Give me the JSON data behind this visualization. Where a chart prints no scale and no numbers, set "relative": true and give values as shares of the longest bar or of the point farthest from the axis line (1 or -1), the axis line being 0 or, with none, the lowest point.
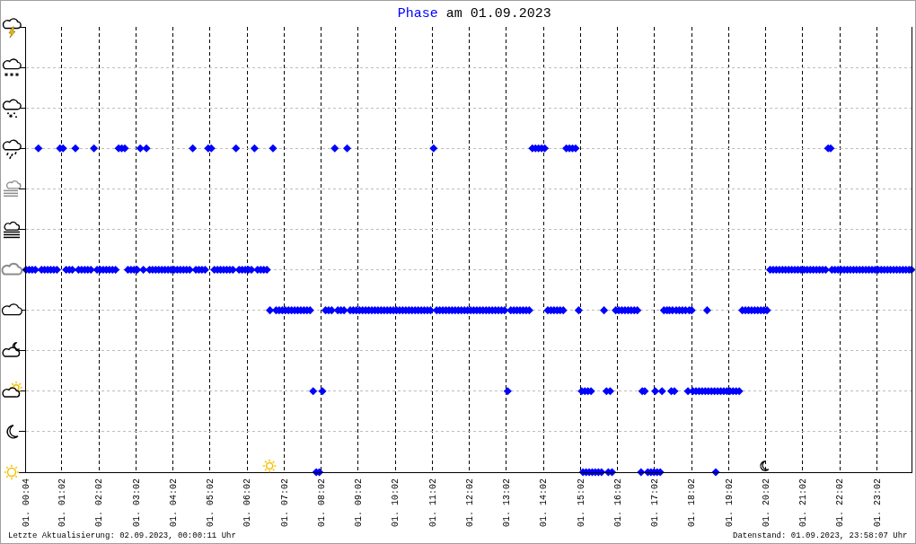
{
  "chart_data": {
    "type": "scatter",
    "title": "Phase am 01.09.2023",
    "annotations": [
      "Letzte Aktualisierung: 02.09.2023, 00:00:11 Uhr",
      "Datenstand: 01.09.2023, 23:58:07 Uhr"
    ],
    "x": [
      "2023-09-01T00:04",
      "2023-09-01T00:09",
      "2023-09-01T00:14",
      "2023-09-01T00:19",
      "2023-09-01T00:24",
      "2023-09-01T00:29",
      "2023-09-01T00:34",
      "2023-09-01T00:39",
      "2023-09-01T00:44",
      "2023-09-01T00:49",
      "2023-09-01T00:54",
      "2023-09-01T00:59",
      "2023-09-01T01:04",
      "2023-09-01T01:09",
      "2023-09-01T01:14",
      "2023-09-01T01:19",
      "2023-09-01T01:24",
      "2023-09-01T01:29",
      "2023-09-01T01:34",
      "2023-09-01T01:39",
      "2023-09-01T01:44",
      "2023-09-01T01:49",
      "2023-09-01T01:54",
      "2023-09-01T01:59",
      "2023-09-01T02:04",
      "2023-09-01T02:09",
      "2023-09-01T02:14",
      "2023-09-01T02:19",
      "2023-09-01T02:24",
      "2023-09-01T02:29",
      "2023-09-01T02:34",
      "2023-09-01T02:39",
      "2023-09-01T02:44",
      "2023-09-01T02:49",
      "2023-09-01T02:54",
      "2023-09-01T02:59",
      "2023-09-01T03:04",
      "2023-09-01T03:09",
      "2023-09-01T03:14",
      "2023-09-01T03:19",
      "2023-09-01T03:24",
      "2023-09-01T03:29",
      "2023-09-01T03:34",
      "2023-09-01T03:39",
      "2023-09-01T03:44",
      "2023-09-01T03:49",
      "2023-09-01T03:54",
      "2023-09-01T03:59",
      "2023-09-01T04:04",
      "2023-09-01T04:09",
      "2023-09-01T04:14",
      "2023-09-01T04:19",
      "2023-09-01T04:24",
      "2023-09-01T04:29",
      "2023-09-01T04:34",
      "2023-09-01T04:39",
      "2023-09-01T04:44",
      "2023-09-01T04:49",
      "2023-09-01T04:54",
      "2023-09-01T04:59",
      "2023-09-01T05:04",
      "2023-09-01T05:09",
      "2023-09-01T05:14",
      "2023-09-01T05:19",
      "2023-09-01T05:24",
      "2023-09-01T05:29",
      "2023-09-01T05:34",
      "2023-09-01T05:39",
      "2023-09-01T05:44",
      "2023-09-01T05:49",
      "2023-09-01T05:54",
      "2023-09-01T05:59",
      "2023-09-01T06:04",
      "2023-09-01T06:09",
      "2023-09-01T06:14",
      "2023-09-01T06:19",
      "2023-09-01T06:24",
      "2023-09-01T06:29",
      "2023-09-01T06:34",
      "2023-09-01T06:39",
      "2023-09-01T06:44",
      "2023-09-01T06:49",
      "2023-09-01T06:54",
      "2023-09-01T06:59",
      "2023-09-01T07:04",
      "2023-09-01T07:09",
      "2023-09-01T07:14",
      "2023-09-01T07:19",
      "2023-09-01T07:24",
      "2023-09-01T07:29",
      "2023-09-01T07:34",
      "2023-09-01T07:39",
      "2023-09-01T07:44",
      "2023-09-01T07:49",
      "2023-09-01T07:54",
      "2023-09-01T07:59",
      "2023-09-01T08:04",
      "2023-09-01T08:09",
      "2023-09-01T08:14",
      "2023-09-01T08:19",
      "2023-09-01T08:24",
      "2023-09-01T08:29",
      "2023-09-01T08:34",
      "2023-09-01T08:39",
      "2023-09-01T08:44",
      "2023-09-01T08:49",
      "2023-09-01T08:54",
      "2023-09-01T08:59",
      "2023-09-01T09:04",
      "2023-09-01T09:09",
      "2023-09-01T09:14",
      "2023-09-01T09:19",
      "2023-09-01T09:24",
      "2023-09-01T09:29",
      "2023-09-01T09:34",
      "2023-09-01T09:39",
      "2023-09-01T09:44",
      "2023-09-01T09:49",
      "2023-09-01T09:54",
      "2023-09-01T09:59",
      "2023-09-01T10:04",
      "2023-09-01T10:09",
      "2023-09-01T10:14",
      "2023-09-01T10:19",
      "2023-09-01T10:24",
      "2023-09-01T10:29",
      "2023-09-01T10:34",
      "2023-09-01T10:39",
      "2023-09-01T10:44",
      "2023-09-01T10:49",
      "2023-09-01T10:54",
      "2023-09-01T10:59",
      "2023-09-01T11:04",
      "2023-09-01T11:09",
      "2023-09-01T11:14",
      "2023-09-01T11:19",
      "2023-09-01T11:24",
      "2023-09-01T11:29",
      "2023-09-01T11:34",
      "2023-09-01T11:39",
      "2023-09-01T11:44",
      "2023-09-01T11:49",
      "2023-09-01T11:54",
      "2023-09-01T11:59",
      "2023-09-01T12:04",
      "2023-09-01T12:09",
      "2023-09-01T12:14",
      "2023-09-01T12:19",
      "2023-09-01T12:24",
      "2023-09-01T12:29",
      "2023-09-01T12:34",
      "2023-09-01T12:39",
      "2023-09-01T12:44",
      "2023-09-01T12:49",
      "2023-09-01T12:54",
      "2023-09-01T12:59",
      "2023-09-01T13:04",
      "2023-09-01T13:09",
      "2023-09-01T13:14",
      "2023-09-01T13:19",
      "2023-09-01T13:24",
      "2023-09-01T13:29",
      "2023-09-01T13:34",
      "2023-09-01T13:39",
      "2023-09-01T13:44",
      "2023-09-01T13:49",
      "2023-09-01T13:54",
      "2023-09-01T13:59",
      "2023-09-01T14:04",
      "2023-09-01T14:09",
      "2023-09-01T14:14",
      "2023-09-01T14:19",
      "2023-09-01T14:24",
      "2023-09-01T14:29",
      "2023-09-01T14:34",
      "2023-09-01T14:39",
      "2023-09-01T14:44",
      "2023-09-01T14:49",
      "2023-09-01T14:54",
      "2023-09-01T14:59",
      "2023-09-01T15:04",
      "2023-09-01T15:06",
      "2023-09-01T15:09",
      "2023-09-01T15:11",
      "2023-09-01T15:14",
      "2023-09-01T15:16",
      "2023-09-01T15:19",
      "2023-09-01T15:21",
      "2023-09-01T15:26",
      "2023-09-01T15:31",
      "2023-09-01T15:36",
      "2023-09-01T15:40",
      "2023-09-01T15:44",
      "2023-09-01T15:47",
      "2023-09-01T15:50",
      "2023-09-01T15:53",
      "2023-09-01T15:59",
      "2023-09-01T16:04",
      "2023-09-01T16:09",
      "2023-09-01T16:14",
      "2023-09-01T16:19",
      "2023-09-01T16:24",
      "2023-09-01T16:29",
      "2023-09-01T16:34",
      "2023-09-01T16:40",
      "2023-09-01T16:42",
      "2023-09-01T16:46",
      "2023-09-01T16:51",
      "2023-09-01T16:56",
      "2023-09-01T17:01",
      "2023-09-01T17:03",
      "2023-09-01T17:06",
      "2023-09-01T17:11",
      "2023-09-01T17:14",
      "2023-09-01T17:17",
      "2023-09-01T17:22",
      "2023-09-01T17:26",
      "2023-09-01T17:29",
      "2023-09-01T17:31",
      "2023-09-01T17:34",
      "2023-09-01T17:37",
      "2023-09-01T17:42",
      "2023-09-01T17:47",
      "2023-09-01T17:52",
      "2023-09-01T17:56",
      "2023-09-01T17:58",
      "2023-09-01T18:02",
      "2023-09-01T18:04",
      "2023-09-01T18:09",
      "2023-09-01T18:14",
      "2023-09-01T18:19",
      "2023-09-01T18:24",
      "2023-09-01T18:27",
      "2023-09-01T18:29",
      "2023-09-01T18:34",
      "2023-09-01T18:39",
      "2023-09-01T18:41",
      "2023-09-01T18:44",
      "2023-09-01T18:49",
      "2023-09-01T18:54",
      "2023-09-01T18:59",
      "2023-09-01T19:04",
      "2023-09-01T19:09",
      "2023-09-01T19:14",
      "2023-09-01T19:19",
      "2023-09-01T19:24",
      "2023-09-01T19:29",
      "2023-09-01T19:34",
      "2023-09-01T19:39",
      "2023-09-01T19:44",
      "2023-09-01T19:49",
      "2023-09-01T19:54",
      "2023-09-01T19:59",
      "2023-09-01T20:04",
      "2023-09-01T20:09",
      "2023-09-01T20:14",
      "2023-09-01T20:19",
      "2023-09-01T20:24",
      "2023-09-01T20:29",
      "2023-09-01T20:34",
      "2023-09-01T20:39",
      "2023-09-01T20:44",
      "2023-09-01T20:49",
      "2023-09-01T20:54",
      "2023-09-01T20:59",
      "2023-09-01T21:04",
      "2023-09-01T21:09",
      "2023-09-01T21:14",
      "2023-09-01T21:19",
      "2023-09-01T21:24",
      "2023-09-01T21:29",
      "2023-09-01T21:34",
      "2023-09-01T21:39",
      "2023-09-01T21:43",
      "2023-09-01T21:47",
      "2023-09-01T21:49",
      "2023-09-01T21:54",
      "2023-09-01T21:59",
      "2023-09-01T22:04",
      "2023-09-01T22:09",
      "2023-09-01T22:14",
      "2023-09-01T22:19",
      "2023-09-01T22:24",
      "2023-09-01T22:29",
      "2023-09-01T22:34",
      "2023-09-01T22:39",
      "2023-09-01T22:44",
      "2023-09-01T22:49",
      "2023-09-01T22:54",
      "2023-09-01T22:59",
      "2023-09-01T23:04",
      "2023-09-01T23:09",
      "2023-09-01T23:14",
      "2023-09-01T23:19",
      "2023-09-01T23:24",
      "2023-09-01T23:29",
      "2023-09-01T23:34",
      "2023-09-01T23:39",
      "2023-09-01T23:44",
      "2023-09-01T23:49",
      "2023-09-01T23:54",
      "2023-09-01T23:58"
    ],
    "values": [
      0.625,
      0.625,
      0.625,
      0.625,
      1,
      0.625,
      0.625,
      0.625,
      0.625,
      0.625,
      0.625,
      1,
      1,
      0.625,
      0.625,
      0.625,
      1,
      0.625,
      0.625,
      0.625,
      0.625,
      0.625,
      1,
      0.625,
      0.625,
      0.625,
      0.625,
      0.625,
      0.625,
      0.625,
      1,
      1,
      1,
      0.625,
      0.625,
      0.625,
      0.625,
      1,
      0.625,
      1,
      0.625,
      0.625,
      0.625,
      0.625,
      0.625,
      0.625,
      0.625,
      0.625,
      0.625,
      0.625,
      0.625,
      0.625,
      0.625,
      0.625,
      1,
      0.625,
      0.625,
      0.625,
      0.625,
      1,
      1,
      0.625,
      0.625,
      0.625,
      0.625,
      0.625,
      0.625,
      0.625,
      1,
      0.625,
      0.625,
      0.625,
      0.625,
      0.625,
      1,
      0.625,
      0.625,
      0.625,
      0.625,
      0.5,
      1,
      0.5,
      0.5,
      0.5,
      0.5,
      0.5,
      0.5,
      0.5,
      0.5,
      0.5,
      0.5,
      0.5,
      0.5,
      0.25,
      0,
      0,
      0.25,
      0.5,
      0.5,
      0.5,
      1,
      0.5,
      0.5,
      0.5,
      1,
      0.5,
      0.5,
      0.5,
      0.5,
      0.5,
      0.5,
      0.5,
      0.5,
      0.5,
      0.5,
      0.5,
      0.5,
      0.5,
      0.5,
      0.5,
      0.5,
      0.5,
      0.5,
      0.5,
      0.5,
      0.5,
      0.5,
      0.5,
      0.5,
      0.5,
      0.5,
      0.5,
      1,
      0.5,
      0.5,
      0.5,
      0.5,
      0.5,
      0.5,
      0.5,
      0.5,
      0.5,
      0.5,
      0.5,
      0.5,
      0.5,
      0.5,
      0.5,
      0.5,
      0.5,
      0.5,
      0.5,
      0.5,
      0.5,
      0.5,
      0.5,
      0.25,
      0.5,
      0.5,
      0.5,
      0.5,
      0.5,
      0.5,
      0.5,
      1,
      1,
      1,
      1,
      1,
      0.5,
      0.5,
      0.5,
      0.5,
      0.5,
      0.5,
      1,
      1,
      1,
      1,
      0.5,
      0.25,
      0,
      0.25,
      0,
      0.25,
      0,
      0.25,
      0,
      0,
      0,
      0,
      0.5,
      0.25,
      0,
      0.25,
      0,
      0.5,
      0.5,
      0.5,
      0.5,
      0.5,
      0.5,
      0.5,
      0.5,
      0,
      0.25,
      0.25,
      0,
      0,
      0,
      0.25,
      0,
      0,
      0.25,
      0.5,
      0.5,
      0.5,
      0.25,
      0.5,
      0.25,
      0.5,
      0.5,
      0.5,
      0.5,
      0.25,
      0.5,
      0.5,
      0.25,
      0.25,
      0.25,
      0.25,
      0.25,
      0.5,
      0.25,
      0.25,
      0.25,
      0,
      0.25,
      0.25,
      0.25,
      0.25,
      0.25,
      0.25,
      0.25,
      0.25,
      0.5,
      0.5,
      0.5,
      0.5,
      0.5,
      0.5,
      0.5,
      0.5,
      0.5,
      0.625,
      0.625,
      0.625,
      0.625,
      0.625,
      0.625,
      0.625,
      0.625,
      0.625,
      0.625,
      0.625,
      0.625,
      0.625,
      0.625,
      0.625,
      0.625,
      0.625,
      0.625,
      0.625,
      1,
      1,
      0.625,
      0.625,
      0.625,
      0.625,
      0.625,
      0.625,
      0.625,
      0.625,
      0.625,
      0.625,
      0.625,
      0.625,
      0.625,
      0.625,
      0.625,
      0.625,
      0.625,
      0.625,
      0.625,
      0.625,
      0.625,
      0.625,
      0.625,
      0.625,
      0.625,
      0.625,
      0.625
    ],
    "relative": true,
    "color": "#0000ff",
    "marker": "diamond",
    "xlim": [
      "2023-09-01T00:04",
      "2023-09-01T23:58"
    ],
    "xticks": [
      {
        "value": "2023-09-01T00:04",
        "label": "01. 00:04"
      },
      {
        "value": "2023-09-01T01:02",
        "label": "01. 01:02"
      },
      {
        "value": "2023-09-01T02:02",
        "label": "01. 02:02"
      },
      {
        "value": "2023-09-01T03:02",
        "label": "01. 03:02"
      },
      {
        "value": "2023-09-01T04:02",
        "label": "01. 04:02"
      },
      {
        "value": "2023-09-01T05:02",
        "label": "01. 05:02"
      },
      {
        "value": "2023-09-01T06:02",
        "label": "01. 06:02"
      },
      {
        "value": "2023-09-01T07:02",
        "label": "01. 07:02"
      },
      {
        "value": "2023-09-01T08:02",
        "label": "01. 08:02"
      },
      {
        "value": "2023-09-01T09:02",
        "label": "01. 09:02"
      },
      {
        "value": "2023-09-01T10:02",
        "label": "01. 10:02"
      },
      {
        "value": "2023-09-01T11:02",
        "label": "01. 11:02"
      },
      {
        "value": "2023-09-01T12:02",
        "label": "01. 12:02"
      },
      {
        "value": "2023-09-01T13:02",
        "label": "01. 13:02"
      },
      {
        "value": "2023-09-01T14:02",
        "label": "01. 14:02"
      },
      {
        "value": "2023-09-01T15:02",
        "label": "01. 15:02"
      },
      {
        "value": "2023-09-01T16:02",
        "label": "01. 16:02"
      },
      {
        "value": "2023-09-01T17:02",
        "label": "01. 17:02"
      },
      {
        "value": "2023-09-01T18:02",
        "label": "01. 18:02"
      },
      {
        "value": "2023-09-01T19:02",
        "label": "01. 19:02"
      },
      {
        "value": "2023-09-01T20:02",
        "label": "01. 20:02"
      },
      {
        "value": "2023-09-01T21:02",
        "label": "01. 21:02"
      },
      {
        "value": "2023-09-01T22:02",
        "label": "01. 22:02"
      },
      {
        "value": "2023-09-01T23:02",
        "label": "01. 23:02"
      }
    ],
    "grid": true,
    "tick_labels": "x"
  }
}
